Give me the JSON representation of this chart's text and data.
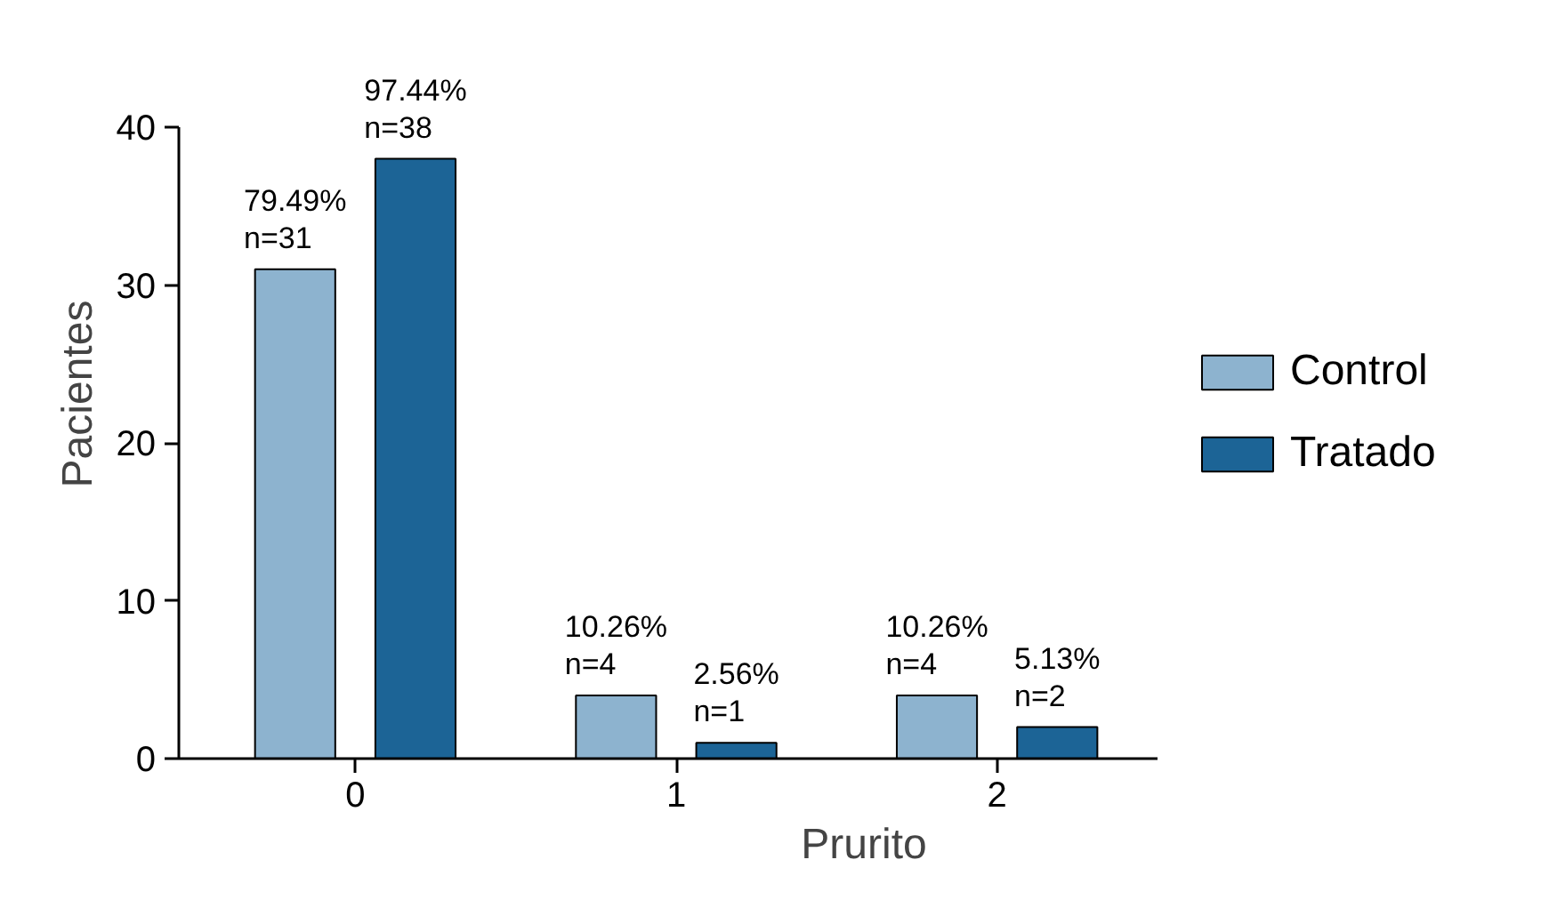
{
  "chart_data": {
    "type": "bar",
    "xlabel": "Prurito",
    "ylabel": "Pacientes",
    "categories": [
      "0",
      "1",
      "2"
    ],
    "series": [
      {
        "name": "Control",
        "color": "#8db3cf",
        "values": [
          31,
          4,
          4
        ],
        "value_labels": [
          "79.49%\nn=31",
          "10.26%\nn=4",
          "10.26%\nn=4"
        ]
      },
      {
        "name": "Tratado",
        "color": "#1c6496",
        "values": [
          38,
          1,
          2
        ],
        "value_labels": [
          "97.44%\nn=38",
          "2.56%\nn=1",
          "5.13%\nn=2"
        ]
      }
    ],
    "ylim": [
      0,
      40
    ],
    "yticks": [
      0,
      10,
      20,
      30,
      40
    ],
    "grid": false,
    "legend": "right"
  }
}
